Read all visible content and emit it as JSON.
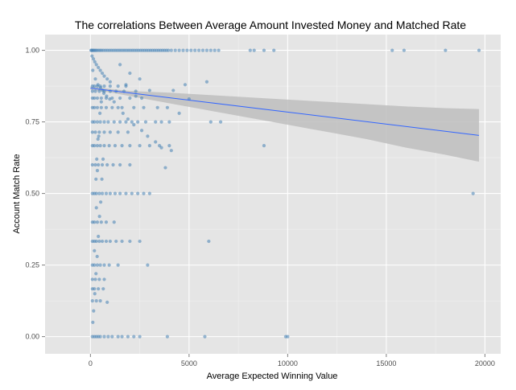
{
  "chart_data": {
    "type": "scatter",
    "title": "The correlations Between Average Amount Invested Money and Matched Rate",
    "xlabel": "Average Expected Winning Value",
    "ylabel": "Account Match Rate",
    "xlim": [
      -2300,
      20800
    ],
    "ylim": [
      -0.06,
      1.055
    ],
    "x_ticks": [
      0,
      5000,
      10000,
      15000,
      20000
    ],
    "x_tick_labels": [
      "0",
      "5000",
      "10000",
      "15000",
      "20000"
    ],
    "y_ticks": [
      0,
      0.25,
      0.5,
      0.75,
      1.0
    ],
    "y_tick_labels": [
      "0.00",
      "0.25",
      "0.50",
      "0.75",
      "1.00"
    ],
    "grid": true,
    "legend": "none",
    "colors": {
      "panel": "#e5e5e5",
      "grid_major": "#ffffff",
      "grid_minor": "#f2f2f2",
      "point": "#4682b4",
      "trend": "#3366ff",
      "band": "#bebebe"
    },
    "trend_line": {
      "x": [
        0,
        19700
      ],
      "y": [
        0.868,
        0.703
      ]
    },
    "confidence_band": {
      "x": [
        0,
        1000,
        2000,
        4000,
        6000,
        8000,
        10000,
        12000,
        14000,
        16000,
        18000,
        19700
      ],
      "upper": [
        0.874,
        0.865,
        0.858,
        0.852,
        0.844,
        0.836,
        0.828,
        0.82,
        0.812,
        0.804,
        0.798,
        0.795
      ],
      "lower": [
        0.862,
        0.853,
        0.84,
        0.815,
        0.79,
        0.765,
        0.74,
        0.715,
        0.69,
        0.66,
        0.635,
        0.611
      ]
    },
    "points": [
      [
        30,
        1.0
      ],
      [
        60,
        1.0
      ],
      [
        100,
        1.0
      ],
      [
        150,
        1.0
      ],
      [
        200,
        1.0
      ],
      [
        260,
        1.0
      ],
      [
        320,
        1.0
      ],
      [
        400,
        1.0
      ],
      [
        480,
        1.0
      ],
      [
        560,
        1.0
      ],
      [
        650,
        1.0
      ],
      [
        750,
        1.0
      ],
      [
        850,
        1.0
      ],
      [
        950,
        1.0
      ],
      [
        1050,
        1.0
      ],
      [
        1150,
        1.0
      ],
      [
        1250,
        1.0
      ],
      [
        1350,
        1.0
      ],
      [
        1450,
        1.0
      ],
      [
        1550,
        1.0
      ],
      [
        1650,
        1.0
      ],
      [
        1750,
        1.0
      ],
      [
        1850,
        1.0
      ],
      [
        1950,
        1.0
      ],
      [
        2050,
        1.0
      ],
      [
        2150,
        1.0
      ],
      [
        2250,
        1.0
      ],
      [
        2350,
        1.0
      ],
      [
        2450,
        1.0
      ],
      [
        2550,
        1.0
      ],
      [
        2650,
        1.0
      ],
      [
        2750,
        1.0
      ],
      [
        2850,
        1.0
      ],
      [
        2950,
        1.0
      ],
      [
        3050,
        1.0
      ],
      [
        3150,
        1.0
      ],
      [
        3250,
        1.0
      ],
      [
        3350,
        1.0
      ],
      [
        3450,
        1.0
      ],
      [
        3550,
        1.0
      ],
      [
        3650,
        1.0
      ],
      [
        3750,
        1.0
      ],
      [
        3850,
        1.0
      ],
      [
        3950,
        1.0
      ],
      [
        4100,
        1.0
      ],
      [
        4300,
        1.0
      ],
      [
        4500,
        1.0
      ],
      [
        4700,
        1.0
      ],
      [
        4900,
        1.0
      ],
      [
        5100,
        1.0
      ],
      [
        5300,
        1.0
      ],
      [
        5500,
        1.0
      ],
      [
        5700,
        1.0
      ],
      [
        5900,
        1.0
      ],
      [
        6100,
        1.0
      ],
      [
        6300,
        1.0
      ],
      [
        6500,
        1.0
      ],
      [
        8100,
        1.0
      ],
      [
        8300,
        1.0
      ],
      [
        8800,
        1.0
      ],
      [
        9300,
        1.0
      ],
      [
        15300,
        1.0
      ],
      [
        15900,
        1.0
      ],
      [
        18000,
        1.0
      ],
      [
        19700,
        1.0
      ],
      [
        80,
        0.98
      ],
      [
        150,
        0.97
      ],
      [
        220,
        0.96
      ],
      [
        300,
        0.95
      ],
      [
        400,
        0.94
      ],
      [
        500,
        0.93
      ],
      [
        600,
        0.92
      ],
      [
        700,
        0.91
      ],
      [
        850,
        0.9
      ],
      [
        1000,
        0.89
      ],
      [
        120,
        0.93
      ],
      [
        250,
        0.9
      ],
      [
        380,
        0.88
      ],
      [
        520,
        0.87
      ],
      [
        680,
        0.85
      ],
      [
        820,
        0.84
      ],
      [
        980,
        0.83
      ],
      [
        1200,
        0.82
      ],
      [
        1400,
        0.8
      ],
      [
        1650,
        0.78
      ],
      [
        1900,
        0.76
      ],
      [
        2200,
        0.74
      ],
      [
        2600,
        0.72
      ],
      [
        2900,
        0.7
      ],
      [
        3300,
        0.68
      ],
      [
        3600,
        0.66
      ],
      [
        4100,
        0.65
      ],
      [
        3900,
        0.8
      ],
      [
        4500,
        0.78
      ],
      [
        5000,
        0.83
      ],
      [
        5900,
        0.89
      ],
      [
        4200,
        0.86
      ],
      [
        4800,
        0.88
      ],
      [
        3000,
        0.86
      ],
      [
        2500,
        0.9
      ],
      [
        2000,
        0.92
      ],
      [
        1500,
        0.95
      ],
      [
        1800,
        0.88
      ],
      [
        2300,
        0.84
      ],
      [
        2700,
        0.8
      ],
      [
        100,
        0.875
      ],
      [
        200,
        0.875
      ],
      [
        350,
        0.875
      ],
      [
        500,
        0.875
      ],
      [
        700,
        0.875
      ],
      [
        1000,
        0.875
      ],
      [
        1400,
        0.875
      ],
      [
        1800,
        0.875
      ],
      [
        100,
        0.857
      ],
      [
        250,
        0.857
      ],
      [
        450,
        0.857
      ],
      [
        700,
        0.857
      ],
      [
        1000,
        0.857
      ],
      [
        1300,
        0.857
      ],
      [
        1700,
        0.857
      ],
      [
        2300,
        0.857
      ],
      [
        100,
        0.833
      ],
      [
        200,
        0.833
      ],
      [
        350,
        0.833
      ],
      [
        550,
        0.833
      ],
      [
        800,
        0.833
      ],
      [
        1100,
        0.833
      ],
      [
        1500,
        0.833
      ],
      [
        2000,
        0.833
      ],
      [
        2600,
        0.833
      ],
      [
        100,
        0.8
      ],
      [
        200,
        0.8
      ],
      [
        350,
        0.8
      ],
      [
        550,
        0.8
      ],
      [
        800,
        0.8
      ],
      [
        1100,
        0.8
      ],
      [
        1600,
        0.8
      ],
      [
        2200,
        0.8
      ],
      [
        3400,
        0.8
      ],
      [
        100,
        0.75
      ],
      [
        200,
        0.75
      ],
      [
        350,
        0.75
      ],
      [
        500,
        0.75
      ],
      [
        700,
        0.75
      ],
      [
        900,
        0.75
      ],
      [
        1200,
        0.75
      ],
      [
        1500,
        0.75
      ],
      [
        1800,
        0.75
      ],
      [
        2100,
        0.75
      ],
      [
        2400,
        0.75
      ],
      [
        2800,
        0.75
      ],
      [
        3300,
        0.75
      ],
      [
        3600,
        0.75
      ],
      [
        4000,
        0.75
      ],
      [
        6100,
        0.75
      ],
      [
        6600,
        0.75
      ],
      [
        100,
        0.714
      ],
      [
        250,
        0.714
      ],
      [
        450,
        0.714
      ],
      [
        700,
        0.714
      ],
      [
        1000,
        0.714
      ],
      [
        1400,
        0.714
      ],
      [
        1900,
        0.714
      ],
      [
        100,
        0.667
      ],
      [
        200,
        0.667
      ],
      [
        350,
        0.667
      ],
      [
        500,
        0.667
      ],
      [
        700,
        0.667
      ],
      [
        950,
        0.667
      ],
      [
        1250,
        0.667
      ],
      [
        1600,
        0.667
      ],
      [
        2000,
        0.667
      ],
      [
        2500,
        0.667
      ],
      [
        3000,
        0.667
      ],
      [
        3500,
        0.667
      ],
      [
        4000,
        0.667
      ],
      [
        8800,
        0.667
      ],
      [
        100,
        0.6
      ],
      [
        250,
        0.6
      ],
      [
        400,
        0.6
      ],
      [
        600,
        0.6
      ],
      [
        850,
        0.6
      ],
      [
        1150,
        0.6
      ],
      [
        1500,
        0.6
      ],
      [
        2000,
        0.6
      ],
      [
        3800,
        0.59
      ],
      [
        100,
        0.5
      ],
      [
        200,
        0.5
      ],
      [
        300,
        0.5
      ],
      [
        450,
        0.5
      ],
      [
        600,
        0.5
      ],
      [
        800,
        0.5
      ],
      [
        1000,
        0.5
      ],
      [
        1250,
        0.5
      ],
      [
        1500,
        0.5
      ],
      [
        1800,
        0.5
      ],
      [
        2100,
        0.5
      ],
      [
        2400,
        0.5
      ],
      [
        2700,
        0.5
      ],
      [
        3000,
        0.5
      ],
      [
        19400,
        0.5
      ],
      [
        100,
        0.4
      ],
      [
        200,
        0.4
      ],
      [
        350,
        0.4
      ],
      [
        550,
        0.4
      ],
      [
        800,
        0.4
      ],
      [
        1200,
        0.4
      ],
      [
        100,
        0.333
      ],
      [
        200,
        0.333
      ],
      [
        300,
        0.333
      ],
      [
        450,
        0.333
      ],
      [
        600,
        0.333
      ],
      [
        800,
        0.333
      ],
      [
        1000,
        0.333
      ],
      [
        1300,
        0.333
      ],
      [
        1600,
        0.333
      ],
      [
        2000,
        0.333
      ],
      [
        2500,
        0.333
      ],
      [
        6000,
        0.333
      ],
      [
        100,
        0.25
      ],
      [
        200,
        0.25
      ],
      [
        350,
        0.25
      ],
      [
        500,
        0.25
      ],
      [
        700,
        0.25
      ],
      [
        950,
        0.25
      ],
      [
        1400,
        0.25
      ],
      [
        2900,
        0.25
      ],
      [
        100,
        0.2
      ],
      [
        250,
        0.2
      ],
      [
        450,
        0.2
      ],
      [
        700,
        0.2
      ],
      [
        100,
        0.167
      ],
      [
        200,
        0.167
      ],
      [
        400,
        0.167
      ],
      [
        650,
        0.167
      ],
      [
        100,
        0.125
      ],
      [
        300,
        0.125
      ],
      [
        500,
        0.125
      ],
      [
        850,
        0.12
      ],
      [
        100,
        0.0
      ],
      [
        200,
        0.0
      ],
      [
        300,
        0.0
      ],
      [
        400,
        0.0
      ],
      [
        500,
        0.0
      ],
      [
        700,
        0.0
      ],
      [
        900,
        0.0
      ],
      [
        1100,
        0.0
      ],
      [
        1400,
        0.0
      ],
      [
        1600,
        0.0
      ],
      [
        1900,
        0.0
      ],
      [
        2200,
        0.0
      ],
      [
        2500,
        0.0
      ],
      [
        3900,
        0.0
      ],
      [
        5800,
        0.0
      ],
      [
        9900,
        0.0
      ],
      [
        10000,
        0.0
      ],
      [
        120,
        0.05
      ],
      [
        160,
        0.09
      ],
      [
        220,
        0.15
      ],
      [
        280,
        0.22
      ],
      [
        340,
        0.28
      ],
      [
        400,
        0.35
      ],
      [
        460,
        0.42
      ],
      [
        520,
        0.47
      ],
      [
        580,
        0.55
      ],
      [
        640,
        0.62
      ],
      [
        200,
        0.3
      ],
      [
        300,
        0.45
      ],
      [
        350,
        0.58
      ],
      [
        420,
        0.7
      ],
      [
        480,
        0.78
      ],
      [
        550,
        0.82
      ],
      [
        620,
        0.86
      ],
      [
        280,
        0.55
      ],
      [
        320,
        0.62
      ],
      [
        380,
        0.69
      ]
    ]
  }
}
